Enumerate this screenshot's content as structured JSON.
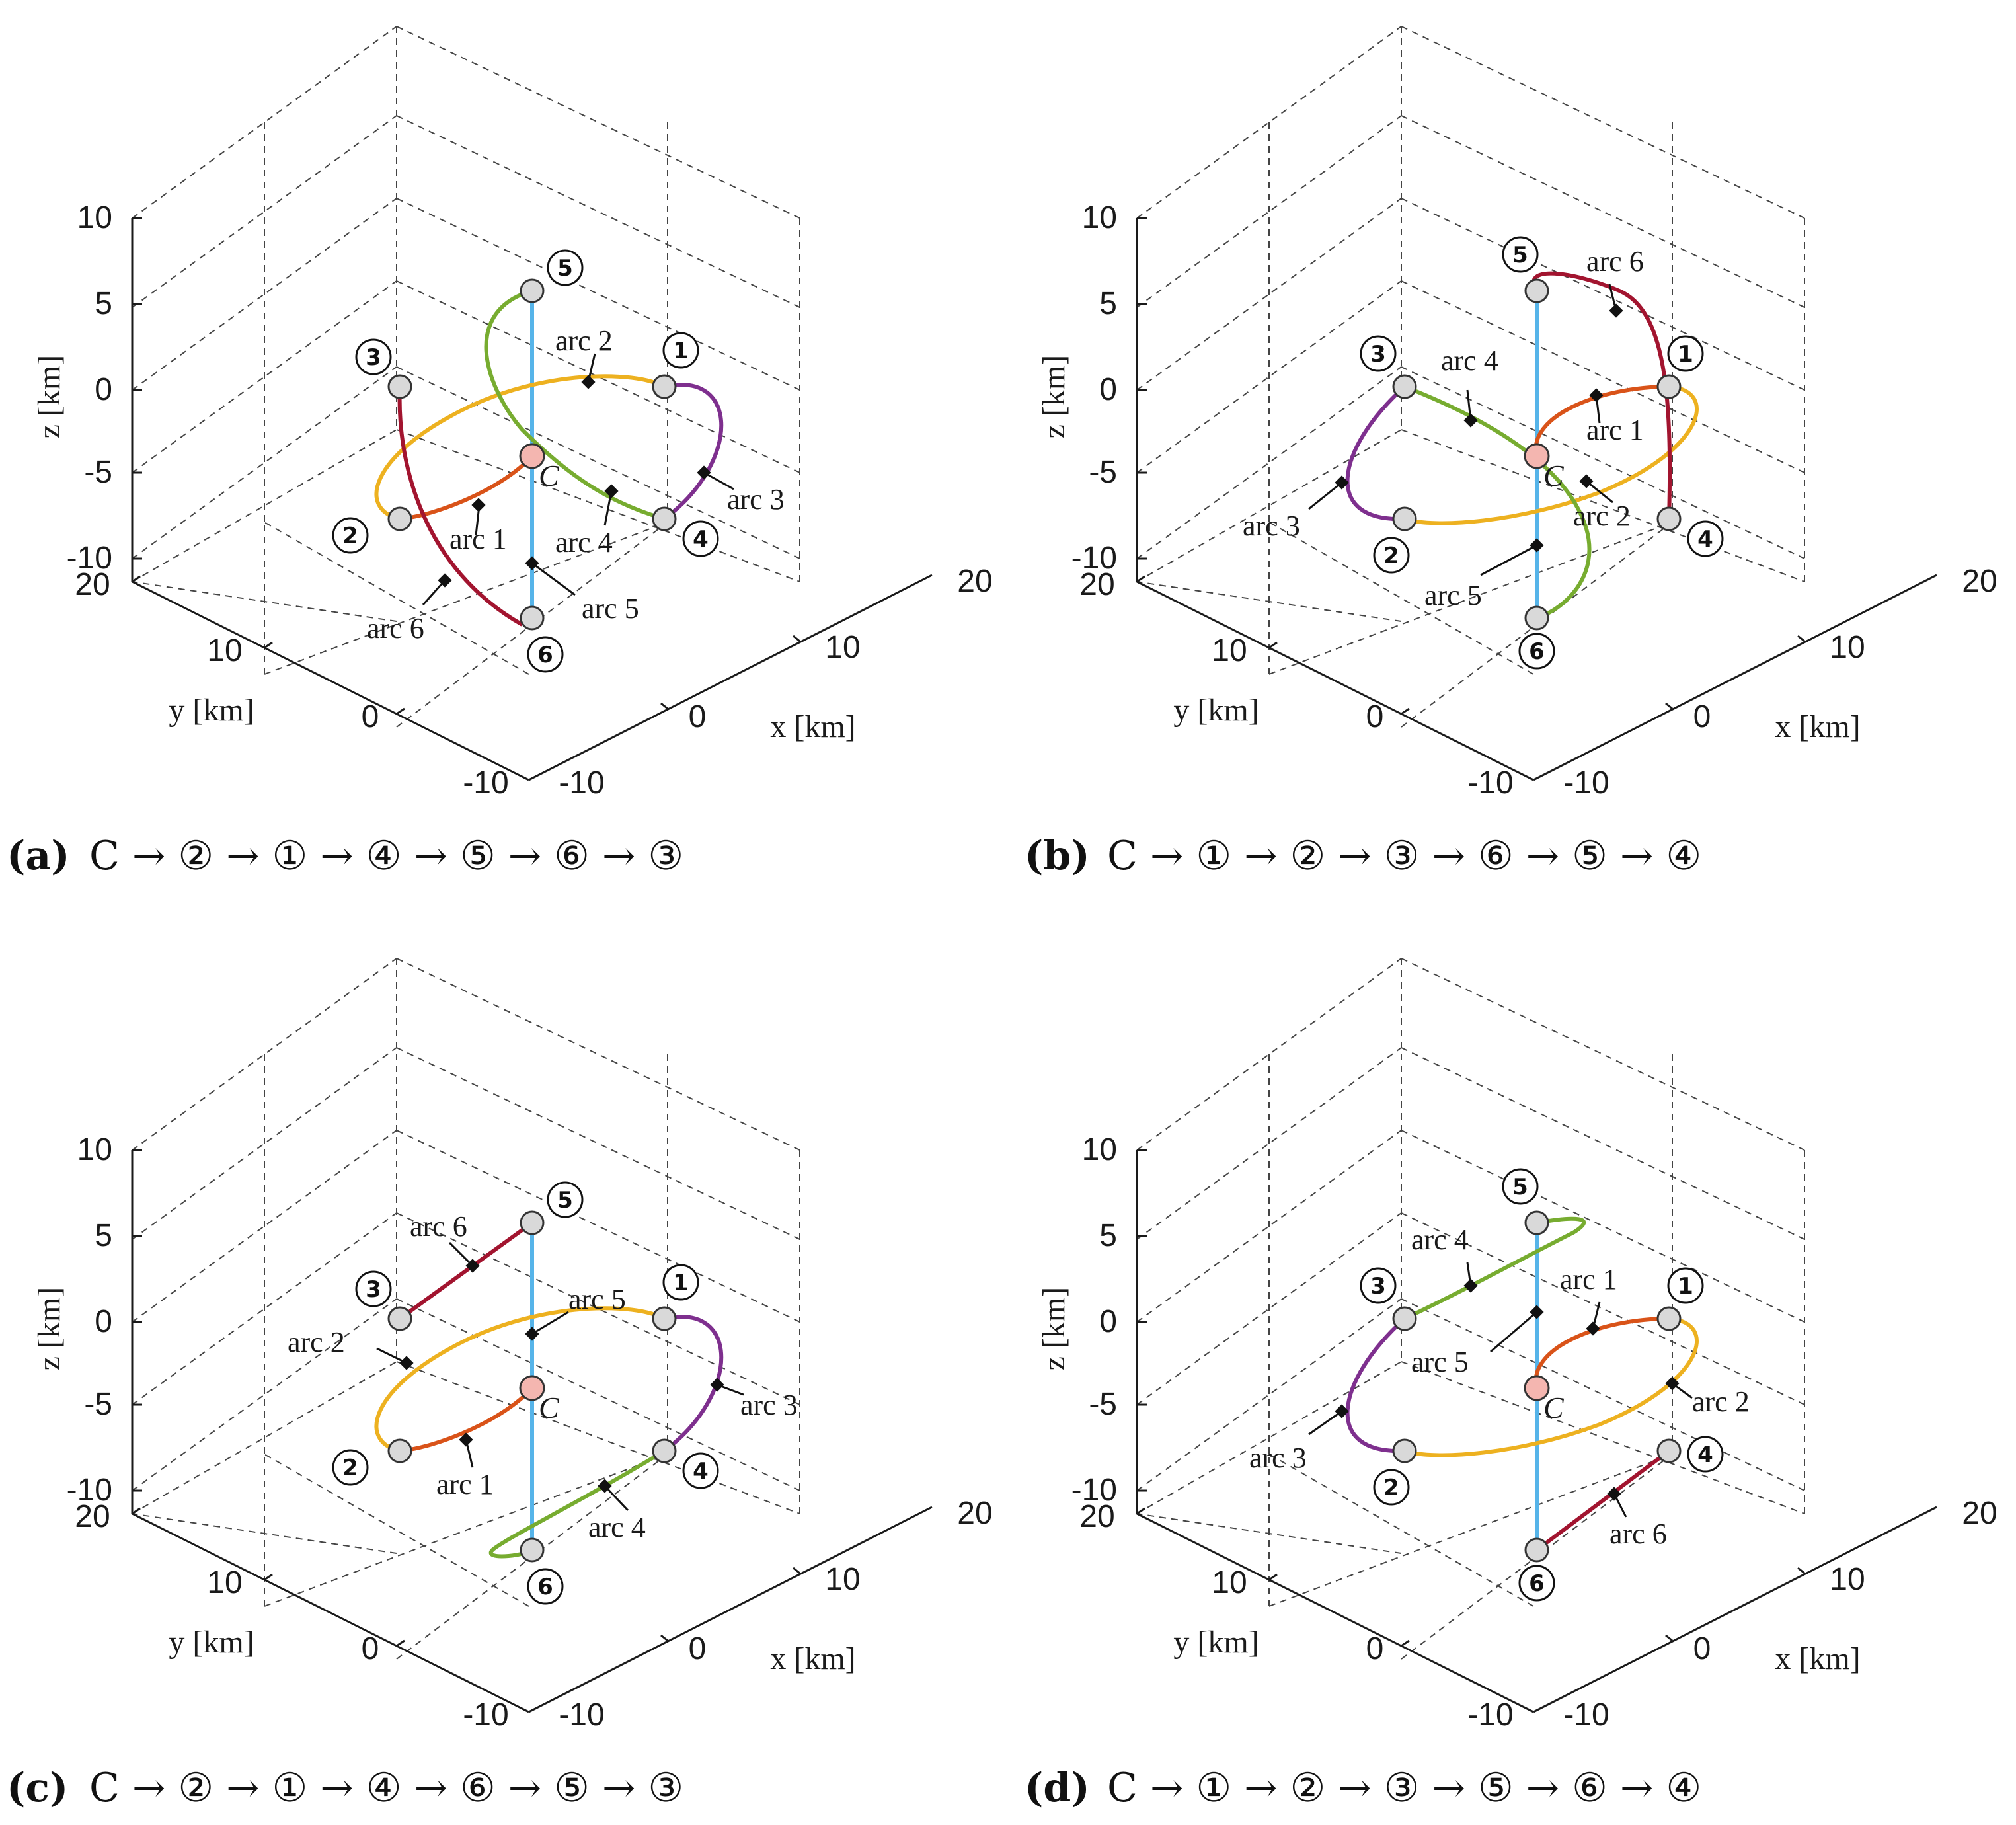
{
  "figure": {
    "colors": {
      "axis": "#1a1a1a",
      "grid": "#444444",
      "vertical_line": "#56b4e9",
      "arc_orange": "#d95319",
      "arc_yellow": "#edb120",
      "arc_purple": "#7e2f8e",
      "arc_green": "#77ac30",
      "arc_red": "#a2142f",
      "node_fill": "#d9d9d9",
      "center_fill": "#f4b6b0"
    },
    "panels": [
      {
        "id": "a",
        "letter": "(a)",
        "sequence": "C → ② → ① → ④ → ⑤ → ⑥ → ③",
        "z_ticks": [
          "10",
          "5",
          "0",
          "-5",
          "-10"
        ],
        "y_ticks": [
          "20",
          "10",
          "0",
          "-10"
        ],
        "x_ticks": [
          "-10",
          "0",
          "10",
          "20"
        ],
        "z_label": "z [km]",
        "y_label": "y [km]",
        "x_label": "x [km]",
        "center_label": "C",
        "arc_labels": [
          "arc 1",
          "arc 2",
          "arc 3",
          "arc 4",
          "arc 5",
          "arc 6"
        ],
        "node_labels": [
          "1",
          "2",
          "3",
          "4",
          "5",
          "6"
        ]
      },
      {
        "id": "b",
        "letter": "(b)",
        "sequence": "C → ① → ② → ③ → ⑥ → ⑤ → ④",
        "z_ticks": [
          "10",
          "5",
          "0",
          "-5",
          "-10"
        ],
        "y_ticks": [
          "20",
          "10",
          "0",
          "-10"
        ],
        "x_ticks": [
          "-10",
          "0",
          "10",
          "20"
        ],
        "z_label": "z [km]",
        "y_label": "y [km]",
        "x_label": "x [km]",
        "center_label": "C",
        "arc_labels": [
          "arc 1",
          "arc 2",
          "arc 3",
          "arc 4",
          "arc 5",
          "arc 6"
        ],
        "node_labels": [
          "1",
          "2",
          "3",
          "4",
          "5",
          "6"
        ]
      },
      {
        "id": "c",
        "letter": "(c)",
        "sequence": "C → ② → ① → ④ → ⑥ → ⑤ → ③",
        "z_ticks": [
          "10",
          "5",
          "0",
          "-5",
          "-10"
        ],
        "y_ticks": [
          "20",
          "10",
          "0",
          "-10"
        ],
        "x_ticks": [
          "-10",
          "0",
          "10",
          "20"
        ],
        "z_label": "z [km]",
        "y_label": "y [km]",
        "x_label": "x [km]",
        "center_label": "C",
        "arc_labels": [
          "arc 1",
          "arc 2",
          "arc 3",
          "arc 4",
          "arc 5",
          "arc 6"
        ],
        "node_labels": [
          "1",
          "2",
          "3",
          "4",
          "5",
          "6"
        ]
      },
      {
        "id": "d",
        "letter": "(d)",
        "sequence": "C → ① → ② → ③ → ⑤ → ⑥ → ④",
        "z_ticks": [
          "10",
          "5",
          "0",
          "-5",
          "-10"
        ],
        "y_ticks": [
          "20",
          "10",
          "0",
          "-10"
        ],
        "x_ticks": [
          "-10",
          "0",
          "10",
          "20"
        ],
        "z_label": "z [km]",
        "y_label": "y [km]",
        "x_label": "x [km]",
        "center_label": "C",
        "arc_labels": [
          "arc 1",
          "arc 2",
          "arc 3",
          "arc 4",
          "arc 5",
          "arc 6"
        ],
        "node_labels": [
          "1",
          "2",
          "3",
          "4",
          "5",
          "6"
        ]
      }
    ]
  }
}
